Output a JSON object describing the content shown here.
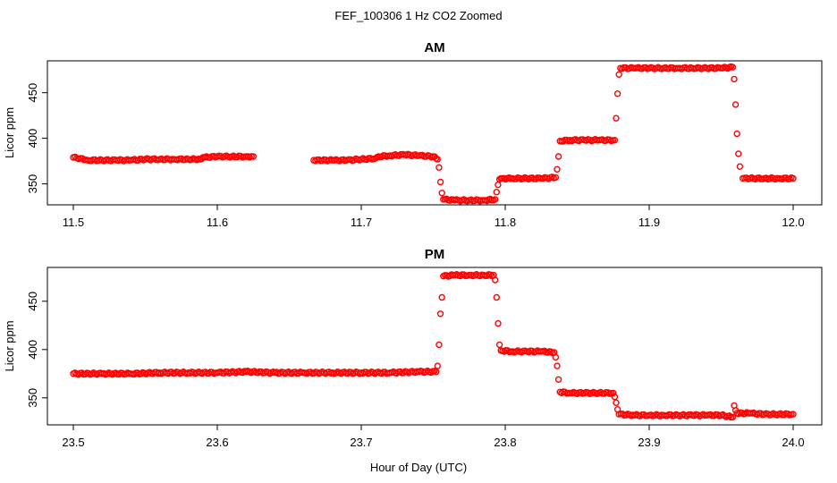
{
  "figure": {
    "title": "FEF_100306  1 Hz CO2 Zoomed",
    "xlabel": "Hour of Day (UTC)",
    "marker_color": "#ff0000"
  },
  "chart_data": [
    {
      "type": "scatter",
      "title": "AM",
      "xlabel": "",
      "ylabel": "Licor ppm",
      "xlim": [
        11.5,
        12.0
      ],
      "ylim": [
        327,
        485
      ],
      "xticks": [
        11.5,
        11.6,
        11.7,
        11.8,
        11.9,
        12.0
      ],
      "xtick_labels": [
        "11.5",
        "11.6",
        "11.7",
        "11.8",
        "11.9",
        "12.0"
      ],
      "yticks": [
        350,
        400,
        450
      ],
      "ytick_labels": [
        "350",
        "400",
        "450"
      ],
      "grid": false,
      "series": [
        {
          "color": "#ff0000",
          "x": [
            11.5,
            11.505,
            11.51,
            11.52,
            11.53,
            11.54,
            11.55,
            11.56,
            11.57,
            11.58,
            11.588,
            11.59,
            11.6,
            11.61,
            11.62,
            11.625,
            11.667,
            11.68,
            11.69,
            11.7,
            11.71,
            11.712,
            11.72,
            11.73,
            11.74,
            11.75,
            11.753,
            11.754,
            11.755,
            11.756,
            11.757,
            11.765,
            11.775,
            11.785,
            11.793,
            11.794,
            11.795,
            11.796,
            11.797,
            11.798,
            11.805,
            11.815,
            11.825,
            11.835,
            11.836,
            11.837,
            11.838,
            11.845,
            11.855,
            11.865,
            11.876,
            11.877,
            11.878,
            11.879,
            11.88,
            11.89,
            11.9,
            11.91,
            11.92,
            11.93,
            11.94,
            11.95,
            11.958,
            11.959,
            11.96,
            11.961,
            11.962,
            11.963,
            11.965,
            11.97,
            11.98,
            11.99,
            12.0
          ],
          "y": [
            379,
            378,
            376,
            376,
            376,
            376,
            377,
            377,
            377,
            377,
            377,
            379,
            380,
            380,
            380,
            380,
            376,
            376,
            376,
            377,
            378,
            380,
            381,
            382,
            381,
            380,
            377,
            368,
            352,
            340,
            333,
            332,
            332,
            332,
            333,
            341,
            349,
            355,
            356,
            356,
            356,
            356,
            356,
            357,
            366,
            380,
            397,
            398,
            398,
            398,
            398,
            422,
            449,
            470,
            477,
            477,
            477,
            477,
            477,
            477,
            477,
            477,
            478,
            465,
            437,
            405,
            383,
            369,
            356,
            356,
            356,
            356,
            356
          ]
        }
      ]
    },
    {
      "type": "scatter",
      "title": "PM",
      "xlabel": "Hour of Day (UTC)",
      "ylabel": "Licor ppm",
      "xlim": [
        23.5,
        24.0
      ],
      "ylim": [
        322,
        485
      ],
      "xticks": [
        23.5,
        23.6,
        23.7,
        23.8,
        23.9,
        24.0
      ],
      "xtick_labels": [
        "23.5",
        "23.6",
        "23.7",
        "23.8",
        "23.9",
        "24.0"
      ],
      "yticks": [
        350,
        400,
        450
      ],
      "ytick_labels": [
        "350",
        "400",
        "450"
      ],
      "grid": false,
      "series": [
        {
          "color": "#ff0000",
          "x": [
            23.5,
            23.52,
            23.54,
            23.56,
            23.58,
            23.6,
            23.62,
            23.64,
            23.66,
            23.68,
            23.7,
            23.72,
            23.74,
            23.752,
            23.753,
            23.754,
            23.755,
            23.756,
            23.757,
            23.765,
            23.775,
            23.785,
            23.792,
            23.793,
            23.794,
            23.795,
            23.796,
            23.797,
            23.805,
            23.815,
            23.825,
            23.834,
            23.835,
            23.836,
            23.837,
            23.838,
            23.845,
            23.855,
            23.865,
            23.875,
            23.876,
            23.877,
            23.878,
            23.879,
            23.89,
            23.9,
            23.91,
            23.92,
            23.93,
            23.94,
            23.95,
            23.958,
            23.959,
            23.96,
            23.961,
            23.97,
            23.98,
            23.99,
            24.0
          ],
          "y": [
            375,
            375,
            375,
            376,
            376,
            376,
            377,
            376,
            376,
            376,
            376,
            376,
            377,
            377,
            383,
            405,
            437,
            454,
            476,
            477,
            477,
            477,
            477,
            472,
            454,
            427,
            405,
            399,
            398,
            398,
            398,
            397,
            392,
            383,
            369,
            356,
            355,
            355,
            355,
            355,
            351,
            345,
            338,
            333,
            332,
            332,
            332,
            332,
            332,
            332,
            332,
            330,
            342,
            337,
            334,
            334,
            333,
            333,
            333
          ]
        }
      ]
    }
  ]
}
